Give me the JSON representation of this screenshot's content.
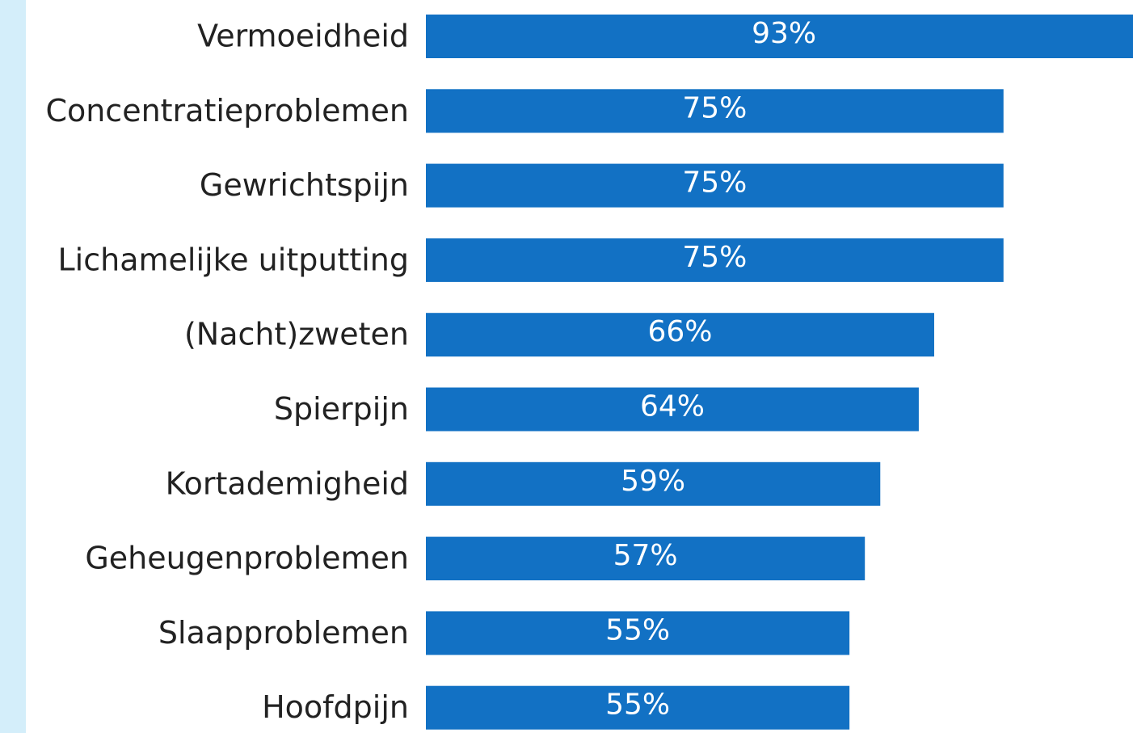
{
  "chart_data": {
    "type": "barh",
    "categories": [
      "Vermoeidheid",
      "Concentratieproblemen",
      "Gewrichtspijn",
      "Lichamelijke uitputting",
      "(Nacht)zweten",
      "Spierpijn",
      "Kortademigheid",
      "Geheugenproblemen",
      "Slaapproblemen",
      "Hoofdpijn"
    ],
    "values": [
      93,
      75,
      75,
      75,
      66,
      64,
      59,
      57,
      55,
      55
    ],
    "value_labels": [
      "93%",
      "75%",
      "75%",
      "75%",
      "66%",
      "64%",
      "59%",
      "57%",
      "55%",
      "55%"
    ],
    "color": "#1271c4"
  }
}
